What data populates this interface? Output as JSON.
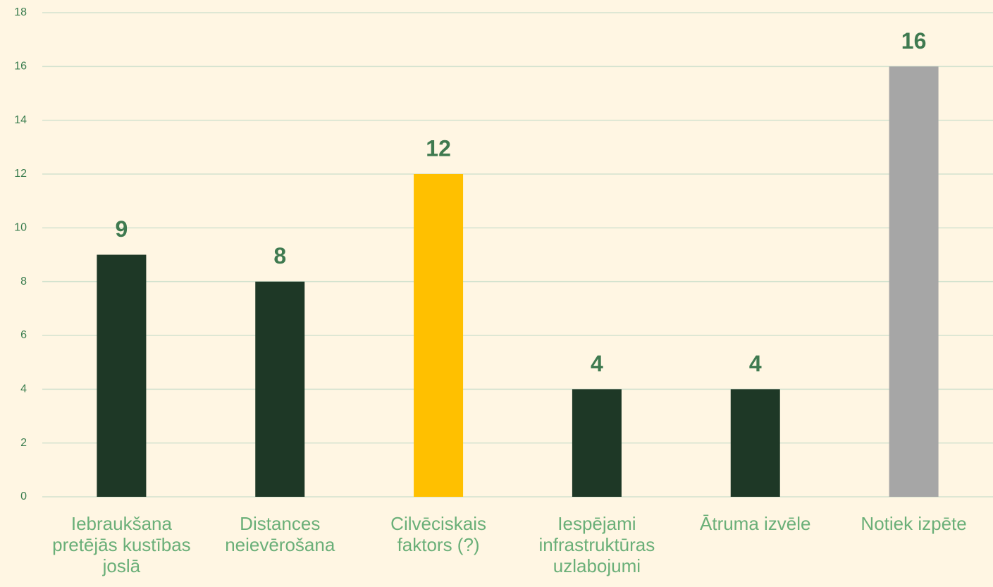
{
  "chart_data": {
    "type": "bar",
    "categories": [
      "Iebraukšana pretējās kustības joslā",
      "Distances neievērošana",
      "Cilvēciskais faktors (?)",
      "Iespējami infrastruktūras uzlabojumi",
      "Ātruma izvēle",
      "Notiek izpēte"
    ],
    "values": [
      9,
      8,
      12,
      4,
      4,
      16
    ],
    "colors": [
      "#1e3826",
      "#1e3826",
      "#ffc000",
      "#1e3826",
      "#1e3826",
      "#a6a6a6"
    ],
    "ylim": [
      0,
      18
    ],
    "yticks": [
      0,
      2,
      4,
      6,
      8,
      10,
      12,
      14,
      16,
      18
    ],
    "grid": true
  }
}
